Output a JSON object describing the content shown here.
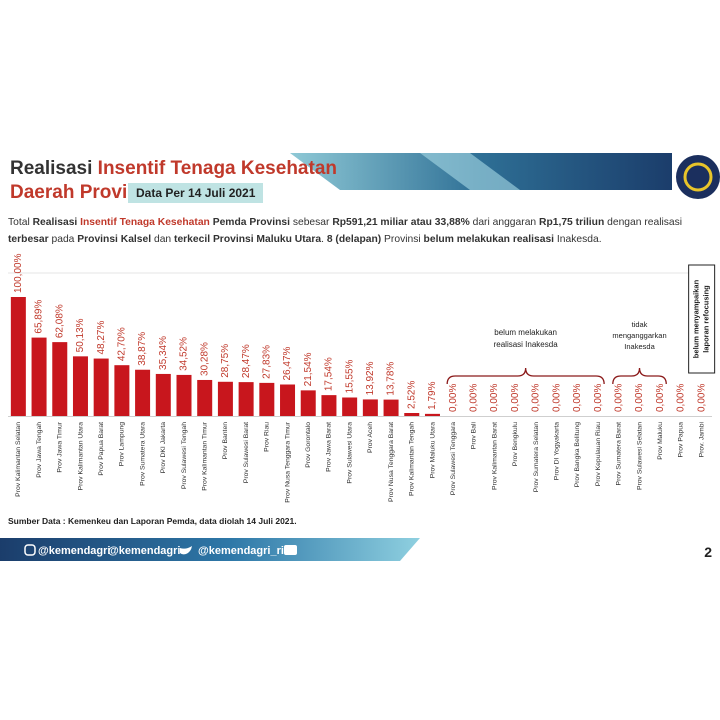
{
  "header": {
    "title_line1": [
      "Realisasi ",
      "Insentif Tenaga Kesehatan"
    ],
    "title_line2": "Daerah Provinsi",
    "date": "Data Per 14 Juli 2021"
  },
  "description": [
    "Total ",
    "Realisasi ",
    "Insentif Tenaga Kesehatan",
    " Pemda Provinsi",
    " sebesar ",
    "Rp591,21",
    " miliar atau ",
    "33,88%",
    " dari anggaran ",
    "Rp1,75 triliun",
    " dengan realisasi ",
    "terbesar",
    " pada ",
    "Provinsi Kalsel",
    " dan ",
    "terkecil Provinsi Maluku Utara",
    ". ",
    "8 (delapan)",
    " Provinsi ",
    "belum melakukan realisasi",
    " Inakesda."
  ],
  "chart_data": {
    "type": "bar",
    "categories": [
      "Prov Kalimantan Selatan",
      "Prov Jawa Tengah",
      "Prov Jawa Timur",
      "Prov Kalimantan Utara",
      "Prov Papua Barat",
      "Prov Lampung",
      "Prov Sumatera Utara",
      "Prov DKI Jakarta",
      "Prov Sulawesi Tengah",
      "Prov Kalimantan Timur",
      "Prov Banten",
      "Prov Sulawesi Barat",
      "Prov Riau",
      "Prov Nusa Tenggara Timur",
      "Prov Gorontalo",
      "Prov Jawa Barat",
      "Prov Sulawesi Utara",
      "Prov Aceh",
      "Prov Nusa Tenggara Barat",
      "Prov Kalimantan Tengah",
      "Prov Maluku Utara",
      "Prov Sulawesi Tenggara",
      "Prov Bali",
      "Prov Kalimantan Barat",
      "Prov Bengkulu",
      "Prov Sumatera Selatan",
      "Prov DI Yogyakarta",
      "Prov Bangka Belitung",
      "Prov Kepulauan Riau",
      "Prov Sumatera Barat",
      "Prov Sulawesi Selatan",
      "Prov Maluku",
      "Prov Papua",
      "Prov. Jambi"
    ],
    "values": [
      100,
      65.89,
      62.08,
      50.13,
      48.27,
      42.7,
      38.87,
      35.34,
      34.52,
      30.28,
      28.75,
      28.47,
      27.83,
      26.47,
      21.54,
      17.54,
      15.55,
      13.92,
      13.78,
      2.52,
      1.79,
      0,
      0,
      0,
      0,
      0,
      0,
      0,
      0,
      0,
      0,
      0,
      0,
      0
    ],
    "value_labels": [
      "100,00%",
      "65,89%",
      "62,08%",
      "50,13%",
      "48,27%",
      "42,70%",
      "38,87%",
      "35,34%",
      "34,52%",
      "30,28%",
      "28,75%",
      "28,47%",
      "27,83%",
      "26,47%",
      "21,54%",
      "17,54%",
      "15,55%",
      "13,92%",
      "13,78%",
      "2,52%",
      "1,79%",
      "0,00%",
      "0,00%",
      "0,00%",
      "0,00%",
      "0,00%",
      "0,00%",
      "0,00%",
      "0,00%",
      "0,00%",
      "0,00%",
      "0,00%",
      "0,00%",
      "0,00%"
    ],
    "color": "#c8161d",
    "ylim": [
      0,
      100
    ],
    "annotations": [
      [
        "belum melakukan",
        "realisasi Inakesda"
      ],
      [
        "tidak",
        "menganggarkan",
        "Inakesda"
      ],
      [
        "belum menyampaikan",
        "laporan refocusing"
      ]
    ]
  },
  "source": "Sumber Data : Kemenkeu dan Laporan Pemda, data  diolah 14 Juli 2021.",
  "footer": {
    "social": [
      "@kemendagri",
      "@kemendagri",
      "@kemendagri_ri"
    ],
    "page": "2"
  }
}
